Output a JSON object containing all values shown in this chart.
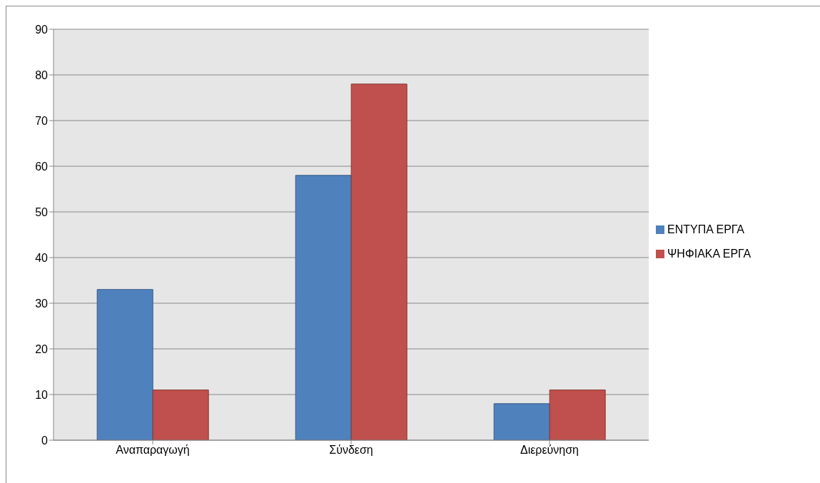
{
  "chart_data": {
    "type": "bar",
    "categories": [
      "Αναπαραγωγή",
      "Σύνδεση",
      "Διερεύνηση"
    ],
    "series": [
      {
        "name": "ΕΝΤΥΠΑ ΕΡΓΑ",
        "color": "#4f81bd",
        "values": [
          33,
          58,
          8
        ]
      },
      {
        "name": "ΨΗΦΙΑΚΑ ΕΡΓΑ",
        "color": "#c0504d",
        "values": [
          11,
          78,
          11
        ]
      }
    ],
    "ylim": [
      0,
      90
    ],
    "yticks": [
      0,
      10,
      20,
      30,
      40,
      50,
      60,
      70,
      80,
      90
    ],
    "grid": "y",
    "legend": "right"
  }
}
